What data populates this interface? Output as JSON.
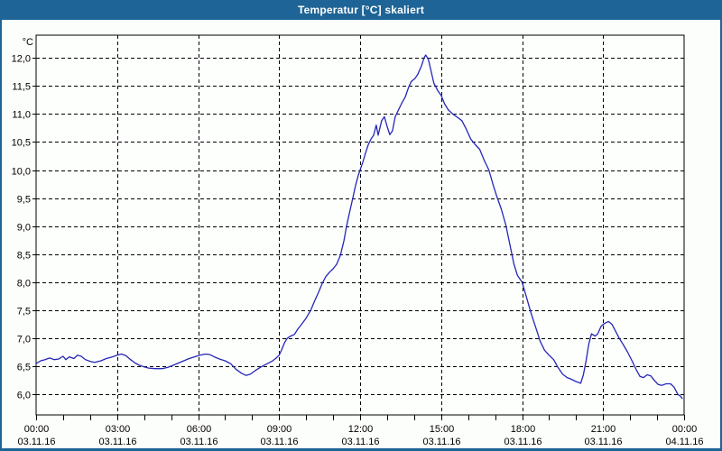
{
  "window": {
    "title": "Temperatur [°C] skaliert"
  },
  "colors": {
    "titlebar": "#1e6496",
    "frame": "#1e6496",
    "content_bg": "#fcfefb",
    "plot_bg": "#fdfffd",
    "grid": "#000000",
    "axis_text": "#000000",
    "title_text": "#ffffff",
    "line": "#2626b8"
  },
  "chart_data": {
    "type": "line",
    "title": "Temperatur [°C] skaliert",
    "y_unit": "°C",
    "ylabel": "Temperatur [°C]",
    "xlabel": "",
    "ylim": [
      5.6,
      12.4
    ],
    "xlim_hours": [
      0,
      24
    ],
    "grid": "dashed",
    "legend": "none",
    "y_ticks": [
      {
        "value": 12.0,
        "label": "12,0"
      },
      {
        "value": 11.5,
        "label": "11,5"
      },
      {
        "value": 11.0,
        "label": "11,0"
      },
      {
        "value": 10.5,
        "label": "10,5"
      },
      {
        "value": 10.0,
        "label": "10,0"
      },
      {
        "value": 9.5,
        "label": "9,5"
      },
      {
        "value": 9.0,
        "label": "9,0"
      },
      {
        "value": 8.5,
        "label": "8,5"
      },
      {
        "value": 8.0,
        "label": "8,0"
      },
      {
        "value": 7.5,
        "label": "7,5"
      },
      {
        "value": 7.0,
        "label": "7,0"
      },
      {
        "value": 6.5,
        "label": "6,5"
      },
      {
        "value": 6.0,
        "label": "6,0"
      }
    ],
    "x_ticks": [
      {
        "hour": 0,
        "time": "00:00",
        "date": "03.11.16"
      },
      {
        "hour": 3,
        "time": "03:00",
        "date": "03.11.16"
      },
      {
        "hour": 6,
        "time": "06:00",
        "date": "03.11.16"
      },
      {
        "hour": 9,
        "time": "09:00",
        "date": "03.11.16"
      },
      {
        "hour": 12,
        "time": "12:00",
        "date": "03.11.16"
      },
      {
        "hour": 15,
        "time": "15:00",
        "date": "03.11.16"
      },
      {
        "hour": 18,
        "time": "18:00",
        "date": "03.11.16"
      },
      {
        "hour": 21,
        "time": "21:00",
        "date": "03.11.16"
      },
      {
        "hour": 24,
        "time": "00:00",
        "date": "04.11.16"
      }
    ],
    "minor_tick_every_hours": 1,
    "series": [
      {
        "name": "Temperatur",
        "color": "#2626b8",
        "points_hour_degC": [
          [
            0.0,
            6.55
          ],
          [
            0.17,
            6.6
          ],
          [
            0.33,
            6.62
          ],
          [
            0.5,
            6.65
          ],
          [
            0.67,
            6.62
          ],
          [
            0.83,
            6.63
          ],
          [
            1.0,
            6.68
          ],
          [
            1.1,
            6.62
          ],
          [
            1.23,
            6.67
          ],
          [
            1.4,
            6.64
          ],
          [
            1.53,
            6.7
          ],
          [
            1.67,
            6.68
          ],
          [
            1.83,
            6.62
          ],
          [
            2.0,
            6.59
          ],
          [
            2.17,
            6.57
          ],
          [
            2.4,
            6.6
          ],
          [
            2.6,
            6.64
          ],
          [
            2.83,
            6.67
          ],
          [
            3.0,
            6.7
          ],
          [
            3.17,
            6.72
          ],
          [
            3.33,
            6.69
          ],
          [
            3.5,
            6.62
          ],
          [
            3.67,
            6.56
          ],
          [
            3.83,
            6.52
          ],
          [
            4.0,
            6.49
          ],
          [
            4.17,
            6.47
          ],
          [
            4.4,
            6.46
          ],
          [
            4.67,
            6.46
          ],
          [
            4.87,
            6.48
          ],
          [
            5.07,
            6.52
          ],
          [
            5.27,
            6.56
          ],
          [
            5.47,
            6.6
          ],
          [
            5.67,
            6.64
          ],
          [
            5.87,
            6.67
          ],
          [
            6.07,
            6.7
          ],
          [
            6.27,
            6.72
          ],
          [
            6.43,
            6.71
          ],
          [
            6.6,
            6.67
          ],
          [
            6.8,
            6.63
          ],
          [
            7.0,
            6.6
          ],
          [
            7.2,
            6.55
          ],
          [
            7.4,
            6.45
          ],
          [
            7.6,
            6.38
          ],
          [
            7.77,
            6.34
          ],
          [
            7.93,
            6.36
          ],
          [
            8.13,
            6.43
          ],
          [
            8.33,
            6.49
          ],
          [
            8.53,
            6.54
          ],
          [
            8.73,
            6.59
          ],
          [
            8.87,
            6.64
          ],
          [
            9.0,
            6.7
          ],
          [
            9.1,
            6.8
          ],
          [
            9.2,
            6.92
          ],
          [
            9.3,
            7.0
          ],
          [
            9.43,
            7.04
          ],
          [
            9.57,
            7.07
          ],
          [
            9.7,
            7.17
          ],
          [
            9.83,
            7.25
          ],
          [
            10.0,
            7.36
          ],
          [
            10.17,
            7.5
          ],
          [
            10.33,
            7.68
          ],
          [
            10.47,
            7.83
          ],
          [
            10.6,
            7.98
          ],
          [
            10.73,
            8.1
          ],
          [
            10.87,
            8.18
          ],
          [
            11.0,
            8.24
          ],
          [
            11.13,
            8.32
          ],
          [
            11.27,
            8.48
          ],
          [
            11.4,
            8.74
          ],
          [
            11.5,
            9.0
          ],
          [
            11.6,
            9.22
          ],
          [
            11.73,
            9.5
          ],
          [
            11.83,
            9.72
          ],
          [
            11.93,
            9.9
          ],
          [
            12.0,
            10.0
          ],
          [
            12.1,
            10.14
          ],
          [
            12.2,
            10.3
          ],
          [
            12.3,
            10.45
          ],
          [
            12.4,
            10.55
          ],
          [
            12.5,
            10.62
          ],
          [
            12.6,
            10.8
          ],
          [
            12.67,
            10.62
          ],
          [
            12.8,
            10.88
          ],
          [
            12.9,
            10.95
          ],
          [
            13.0,
            10.78
          ],
          [
            13.1,
            10.63
          ],
          [
            13.2,
            10.7
          ],
          [
            13.3,
            10.95
          ],
          [
            13.4,
            11.05
          ],
          [
            13.53,
            11.18
          ],
          [
            13.67,
            11.3
          ],
          [
            13.8,
            11.48
          ],
          [
            13.9,
            11.58
          ],
          [
            14.03,
            11.63
          ],
          [
            14.13,
            11.7
          ],
          [
            14.27,
            11.85
          ],
          [
            14.37,
            12.0
          ],
          [
            14.43,
            12.05
          ],
          [
            14.53,
            11.97
          ],
          [
            14.63,
            11.76
          ],
          [
            14.73,
            11.55
          ],
          [
            14.87,
            11.42
          ],
          [
            15.0,
            11.33
          ],
          [
            15.13,
            11.18
          ],
          [
            15.27,
            11.07
          ],
          [
            15.43,
            11.0
          ],
          [
            15.6,
            10.94
          ],
          [
            15.77,
            10.88
          ],
          [
            15.93,
            10.73
          ],
          [
            16.1,
            10.55
          ],
          [
            16.27,
            10.45
          ],
          [
            16.43,
            10.37
          ],
          [
            16.6,
            10.17
          ],
          [
            16.77,
            10.0
          ],
          [
            16.93,
            9.73
          ],
          [
            17.07,
            9.52
          ],
          [
            17.23,
            9.3
          ],
          [
            17.4,
            9.02
          ],
          [
            17.57,
            8.62
          ],
          [
            17.7,
            8.32
          ],
          [
            17.83,
            8.12
          ],
          [
            18.0,
            8.0
          ],
          [
            18.17,
            7.72
          ],
          [
            18.33,
            7.45
          ],
          [
            18.5,
            7.2
          ],
          [
            18.67,
            6.95
          ],
          [
            18.83,
            6.79
          ],
          [
            19.0,
            6.7
          ],
          [
            19.17,
            6.62
          ],
          [
            19.33,
            6.48
          ],
          [
            19.5,
            6.36
          ],
          [
            19.67,
            6.3
          ],
          [
            19.83,
            6.27
          ],
          [
            20.0,
            6.23
          ],
          [
            20.17,
            6.2
          ],
          [
            20.27,
            6.35
          ],
          [
            20.37,
            6.6
          ],
          [
            20.47,
            6.9
          ],
          [
            20.57,
            7.08
          ],
          [
            20.7,
            7.04
          ],
          [
            20.8,
            7.08
          ],
          [
            20.93,
            7.22
          ],
          [
            21.07,
            7.27
          ],
          [
            21.2,
            7.3
          ],
          [
            21.33,
            7.25
          ],
          [
            21.47,
            7.12
          ],
          [
            21.6,
            7.0
          ],
          [
            21.73,
            6.9
          ],
          [
            21.9,
            6.76
          ],
          [
            22.07,
            6.6
          ],
          [
            22.23,
            6.44
          ],
          [
            22.37,
            6.32
          ],
          [
            22.5,
            6.3
          ],
          [
            22.63,
            6.35
          ],
          [
            22.77,
            6.33
          ],
          [
            22.9,
            6.25
          ],
          [
            23.03,
            6.18
          ],
          [
            23.17,
            6.16
          ],
          [
            23.33,
            6.19
          ],
          [
            23.5,
            6.19
          ],
          [
            23.63,
            6.13
          ],
          [
            23.77,
            6.0
          ],
          [
            23.87,
            5.97
          ],
          [
            23.93,
            5.93
          ]
        ]
      }
    ]
  }
}
